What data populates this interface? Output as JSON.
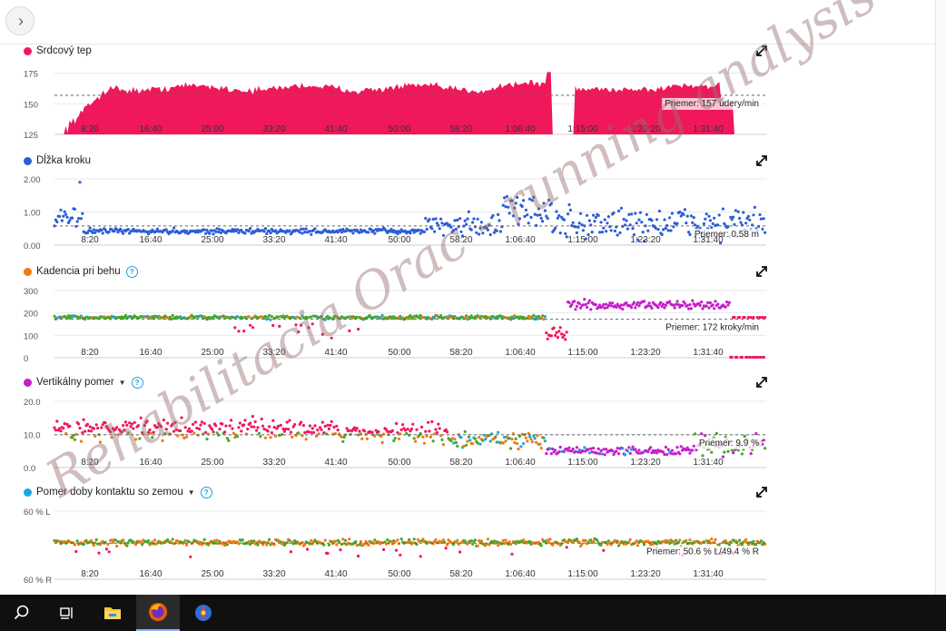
{
  "charts": [
    {
      "key": "hr",
      "title": "Srdcový tep",
      "color": "#f0185a",
      "mode": "area",
      "help": false,
      "dropdown": false,
      "y_ticks": [
        "175",
        "150",
        "125"
      ],
      "y_values": [
        175,
        150,
        125
      ],
      "ylim": [
        125,
        180
      ],
      "avg_value": 157,
      "avg_label": "Priemer: 157 údery/min",
      "x_labels": [
        "8:20",
        "16:40",
        "25:00",
        "33:20",
        "41:40",
        "50:00",
        "58:20",
        "1:06:40",
        "1:15:00",
        "1:23:20",
        "1:31:40"
      ]
    },
    {
      "key": "stride",
      "title": "Dĺžka kroku",
      "color": "#2b5ed6",
      "mode": "scatter",
      "help": false,
      "dropdown": false,
      "y_ticks": [
        "2.00",
        "1.00",
        "0.00"
      ],
      "y_values": [
        2,
        1,
        0
      ],
      "ylim": [
        0,
        2
      ],
      "avg_value": 0.58,
      "avg_label": "Priemer: 0.58 m",
      "x_labels": [
        "8:20",
        "16:40",
        "25:00",
        "33:20",
        "41:40",
        "50:00",
        "58:20",
        "1:06:40",
        "1:15:00",
        "1:23:20",
        "1:31:40"
      ]
    },
    {
      "key": "cadence",
      "title": "Kadencia pri behu",
      "color": "#f07a0e",
      "mode": "scatter",
      "help": true,
      "dropdown": false,
      "y_ticks": [
        "300",
        "200",
        "100",
        "0"
      ],
      "y_values": [
        300,
        200,
        100,
        0
      ],
      "ylim": [
        0,
        300
      ],
      "avg_value": 172,
      "avg_label": "Priemer: 172 kroky/min",
      "x_labels": [
        "8:20",
        "16:40",
        "25:00",
        "33:20",
        "41:40",
        "50:00",
        "58:20",
        "1:06:40",
        "1:15:00",
        "1:23:20",
        "1:31:40"
      ]
    },
    {
      "key": "vratio",
      "title": "Vertikálny pomer",
      "color": "#c41ec9",
      "mode": "scatter",
      "help": true,
      "dropdown": true,
      "y_ticks": [
        "20.0",
        "10.0",
        "0.0"
      ],
      "y_values": [
        20,
        10,
        0
      ],
      "ylim": [
        0,
        20
      ],
      "avg_value": 9.9,
      "avg_label": "Priemer: 9.9 %",
      "x_labels": [
        "8:20",
        "16:40",
        "25:00",
        "33:20",
        "41:40",
        "50:00",
        "58:20",
        "1:06:40",
        "1:15:00",
        "1:23:20",
        "1:31:40"
      ]
    },
    {
      "key": "gct",
      "title": "Pomer doby kontaktu so zemou",
      "color": "#1ba6e0",
      "mode": "balance",
      "help": true,
      "dropdown": true,
      "y_ticks": [
        "60 % L",
        "60 % R"
      ],
      "y_values": [
        60,
        40
      ],
      "ylim": [
        40,
        60
      ],
      "avg_value": 50.6,
      "avg_label": "Priemer: 50.6 % L/49.4 % R",
      "x_labels": [
        "8:20",
        "16:40",
        "25:00",
        "33:20",
        "41:40",
        "50:00",
        "58:20",
        "1:06:40",
        "1:15:00",
        "1:23:20",
        "1:31:40"
      ]
    }
  ],
  "palette": {
    "red": "#f0185a",
    "orange": "#f07a0e",
    "green": "#47a82a",
    "cyan": "#1ba6e0",
    "purple": "#c41ec9",
    "blue": "#2b5ed6"
  },
  "watermark": "Rehabilitacia Orac - running analysis",
  "taskbar": {
    "items": [
      "search-icon",
      "task-view-icon",
      "file-explorer-icon",
      "firefox-icon",
      "browser-globe-icon"
    ]
  }
}
